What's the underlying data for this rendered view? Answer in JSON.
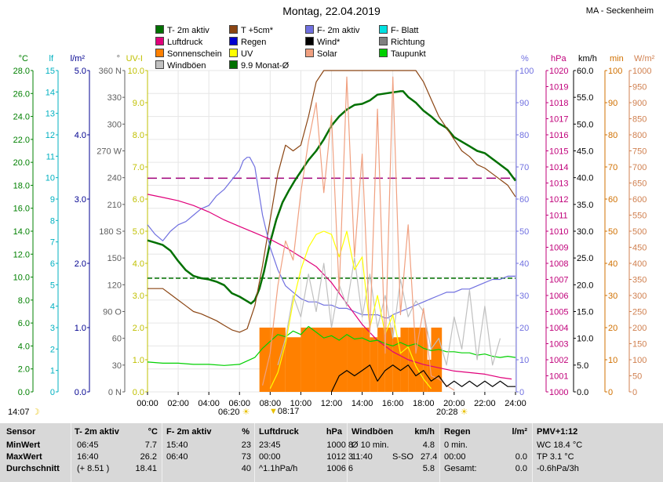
{
  "header": {
    "title": "Montag, 22.04.2019",
    "station": "MA - Seckenheim"
  },
  "legend": [
    {
      "label": "T- 2m aktiv",
      "color": "#007000"
    },
    {
      "label": "T +5cm*",
      "color": "#8b4513"
    },
    {
      "label": "F- 2m aktiv",
      "color": "#7070e0"
    },
    {
      "label": "F- Blatt",
      "color": "#00e0e0"
    },
    {
      "label": "Luftdruck",
      "color": "#e0007a"
    },
    {
      "label": "Regen",
      "color": "#0000d0"
    },
    {
      "label": "Wind*",
      "color": "#000000"
    },
    {
      "label": "Richtung",
      "color": "#808080"
    },
    {
      "label": "Sonnenschein",
      "color": "#ff8000"
    },
    {
      "label": "UV",
      "color": "#ffff00"
    },
    {
      "label": "Solar",
      "color": "#f0a080"
    },
    {
      "label": "Taupunkt",
      "color": "#00d000"
    },
    {
      "label": "Windböen",
      "color": "#c0c0c0"
    },
    {
      "label": "9.9 Monat-Ø",
      "color": "#007000"
    }
  ],
  "axis_units": {
    "temp": "°C",
    "lf": "lf",
    "rain": "l/m²",
    "dir": "°",
    "uv": "UV-I",
    "hum": "%",
    "press": "hPa",
    "wind": "km/h",
    "min": "min",
    "solar": "W/m²"
  },
  "chart_data": {
    "type": "line",
    "x_range": [
      0,
      24
    ],
    "x_ticks": [
      "00:00",
      "02:00",
      "04:00",
      "06:00",
      "08:00",
      "10:00",
      "12:00",
      "14:00",
      "16:00",
      "18:00",
      "20:00",
      "22:00",
      "24:00"
    ],
    "axes": {
      "temp": {
        "ticks": [
          "28.0",
          "26.0",
          "24.0",
          "22.0",
          "20.0",
          "18.0",
          "16.0",
          "14.0",
          "12.0",
          "10.0",
          "8.0",
          "6.0",
          "4.0",
          "2.0",
          "0.0"
        ],
        "range": [
          0,
          28
        ]
      },
      "lf": {
        "ticks": [
          "15",
          "14",
          "13",
          "12",
          "11",
          "10",
          "9",
          "8",
          "7",
          "6",
          "5",
          "4",
          "3",
          "2",
          "1",
          "0"
        ],
        "range": [
          0,
          15
        ]
      },
      "rain": {
        "ticks": [
          "5.0",
          "4.0",
          "3.0",
          "2.0",
          "1.0",
          "0.0"
        ],
        "range": [
          0,
          5
        ]
      },
      "dir": {
        "ticks": [
          "360 N",
          "330",
          "300",
          "270 W",
          "240",
          "210",
          "180 S",
          "150",
          "120",
          "90 O",
          "60",
          "30",
          "0 N"
        ],
        "range": [
          0,
          360
        ]
      },
      "uv": {
        "ticks": [
          "10.0",
          "9.0",
          "8.0",
          "7.0",
          "6.0",
          "5.0",
          "4.0",
          "3.0",
          "2.0",
          "1.0",
          "0.0"
        ],
        "range": [
          0,
          10
        ]
      },
      "hum": {
        "ticks": [
          "100",
          "90",
          "80",
          "70",
          "60",
          "50",
          "40",
          "30",
          "20",
          "10",
          "0"
        ],
        "range": [
          0,
          100
        ]
      },
      "press": {
        "ticks": [
          "1020",
          "1019",
          "1018",
          "1017",
          "1016",
          "1015",
          "1014",
          "1013",
          "1012",
          "1011",
          "1010",
          "1009",
          "1008",
          "1007",
          "1006",
          "1005",
          "1004",
          "1003",
          "1002",
          "1001",
          "1000"
        ],
        "range": [
          1000,
          1020
        ]
      },
      "wind": {
        "ticks": [
          "60.0",
          "55.0",
          "50.0",
          "45.0",
          "40.0",
          "35.0",
          "30.0",
          "25.0",
          "20.0",
          "15.0",
          "10.0",
          "5.0",
          "0.0"
        ],
        "range": [
          0,
          60
        ]
      },
      "min": {
        "ticks": [
          "100",
          "90",
          "80",
          "70",
          "60",
          "50",
          "40",
          "30",
          "20",
          "10",
          "0"
        ],
        "range": [
          0,
          100
        ]
      },
      "solar": {
        "ticks": [
          "1000",
          "950",
          "900",
          "850",
          "800",
          "750",
          "700",
          "650",
          "600",
          "550",
          "500",
          "450",
          "400",
          "350",
          "300",
          "250",
          "200",
          "150",
          "100",
          "50",
          "0"
        ],
        "range": [
          0,
          1000
        ]
      }
    },
    "series": [
      {
        "name": "T- 2m aktiv",
        "axis": "temp",
        "color": "#007000",
        "x": [
          0,
          0.5,
          1,
          1.5,
          2,
          2.5,
          3,
          3.5,
          4,
          4.5,
          5,
          5.5,
          6,
          6.5,
          6.75,
          7,
          7.3,
          7.6,
          8,
          8.4,
          8.8,
          9.2,
          9.6,
          10,
          10.5,
          11,
          11.5,
          12,
          12.5,
          13,
          13.5,
          14,
          14.5,
          15,
          15.5,
          16,
          16.5,
          16.67,
          17,
          17.5,
          18,
          18.5,
          19,
          19.5,
          20,
          20.5,
          21,
          21.5,
          22,
          22.5,
          23,
          23.5,
          24
        ],
        "y": [
          13.2,
          13.0,
          12.8,
          12.3,
          11.4,
          10.6,
          10.1,
          9.9,
          9.8,
          9.6,
          9.3,
          8.6,
          8.3,
          7.9,
          7.7,
          8.0,
          9.0,
          10.5,
          13.0,
          15.0,
          16.5,
          17.5,
          18.4,
          19.2,
          20.2,
          21.0,
          22.0,
          23.2,
          24.0,
          24.6,
          25.0,
          25.1,
          25.4,
          25.9,
          26.0,
          26.1,
          26.2,
          26.2,
          25.7,
          25.2,
          24.5,
          24.0,
          23.4,
          23.0,
          22.2,
          21.8,
          21.4,
          21.0,
          20.8,
          20.3,
          19.8,
          19.3,
          18.4
        ]
      },
      {
        "name": "T +5cm*",
        "axis": "temp",
        "color": "#8b4513",
        "x": [
          0,
          0.5,
          1,
          1.5,
          2,
          2.5,
          3,
          3.5,
          4,
          4.5,
          5,
          5.5,
          6,
          6.5,
          7,
          7.5,
          8,
          8.5,
          9,
          9.5,
          10,
          10.5,
          11,
          11.5,
          12,
          12.5,
          13,
          13.5,
          14,
          14.5,
          15,
          15.5,
          16,
          16.5,
          17,
          17.5,
          18,
          18.5,
          19,
          19.5,
          20,
          20.5,
          21,
          21.5,
          22,
          22.5,
          23,
          23.5,
          24
        ],
        "y": [
          9.0,
          9.0,
          9.0,
          8.5,
          8.0,
          7.5,
          7.0,
          6.8,
          6.5,
          6.2,
          5.8,
          5.4,
          5.2,
          5.5,
          7.5,
          11.0,
          15.0,
          19.0,
          21.5,
          21.0,
          21.5,
          24.0,
          27.0,
          28.5,
          28.0,
          29.0,
          30.0,
          31.0,
          31.5,
          32.0,
          31.5,
          31.0,
          30.5,
          30.0,
          29.0,
          28.0,
          27.0,
          25.5,
          24.0,
          23.0,
          22.0,
          21.0,
          20.5,
          19.8,
          19.5,
          19.0,
          18.5,
          18.0,
          17.0
        ]
      },
      {
        "name": "F- 2m aktiv",
        "axis": "hum",
        "color": "#7070e0",
        "x": [
          0,
          0.5,
          1,
          1.5,
          2,
          2.5,
          3,
          3.5,
          4,
          4.5,
          5,
          5.5,
          6,
          6.25,
          6.5,
          6.67,
          7,
          7.5,
          8,
          8.5,
          9,
          9.5,
          10,
          10.5,
          11,
          11.5,
          12,
          12.5,
          13,
          13.5,
          14,
          14.5,
          15,
          15.5,
          15.67,
          16,
          16.5,
          17,
          17.5,
          18,
          18.5,
          19,
          19.5,
          20,
          20.5,
          21,
          21.5,
          22,
          22.5,
          23,
          23.5,
          24
        ],
        "y": [
          52,
          49,
          47,
          50,
          52,
          53,
          55,
          57,
          58,
          61,
          63,
          66,
          69,
          72,
          73,
          73,
          70,
          55,
          45,
          38,
          33,
          31,
          29,
          28,
          28,
          27,
          27,
          26,
          26,
          25,
          24,
          24,
          24,
          23,
          23,
          24,
          25,
          26,
          27,
          28,
          29,
          30,
          31,
          31,
          32,
          32,
          33,
          34,
          35,
          35,
          36,
          36
        ]
      },
      {
        "name": "Luftdruck",
        "axis": "press",
        "color": "#e0007a",
        "x": [
          0,
          1,
          2,
          3,
          4,
          5,
          6,
          7,
          8,
          9,
          10,
          11,
          12,
          13,
          14,
          15,
          16,
          17,
          18,
          19,
          20,
          21,
          22,
          23,
          23.75
        ],
        "y": [
          1012.3,
          1012.1,
          1011.9,
          1011.6,
          1011.2,
          1010.7,
          1010.3,
          1009.9,
          1009.5,
          1009.0,
          1008.4,
          1007.8,
          1006.8,
          1005.5,
          1004.2,
          1003.2,
          1002.5,
          1002.0,
          1001.7,
          1001.5,
          1001.3,
          1001.2,
          1001.1,
          1000.9,
          1000.8
        ]
      },
      {
        "name": "Taupunkt",
        "axis": "temp",
        "color": "#00d000",
        "x": [
          0,
          1,
          2,
          3,
          4,
          5,
          6,
          7,
          7.5,
          8,
          8.5,
          9,
          9.5,
          10,
          10.5,
          11,
          11.5,
          12,
          12.5,
          13,
          13.5,
          14,
          14.5,
          15,
          15.5,
          16,
          16.5,
          17,
          17.5,
          18,
          18.5,
          19,
          19.5,
          20,
          20.5,
          21,
          21.5,
          22,
          22.5,
          23,
          23.5,
          24
        ],
        "y": [
          2.6,
          2.5,
          2.5,
          2.4,
          2.4,
          2.3,
          2.4,
          3.0,
          3.8,
          4.4,
          5.0,
          4.8,
          5.3,
          5.0,
          5.7,
          5.2,
          4.7,
          4.9,
          4.5,
          5.0,
          4.6,
          4.7,
          4.4,
          4.5,
          4.2,
          4.0,
          4.3,
          4.0,
          4.2,
          3.8,
          3.6,
          3.7,
          3.5,
          3.5,
          3.4,
          3.4,
          3.2,
          3.3,
          3.1,
          3.0,
          3.1,
          3.0
        ]
      },
      {
        "name": "Windböen",
        "axis": "wind",
        "color": "#c0c0c0",
        "x": [
          8.5,
          9,
          9.5,
          10,
          10.5,
          11,
          11.5,
          12,
          12.5,
          13,
          13.5,
          14,
          14.5,
          15,
          15.5,
          16,
          16.5,
          17,
          17.5,
          18,
          18.5,
          19,
          19.5,
          20,
          20.5,
          21,
          21.5,
          22,
          22.5,
          23
        ],
        "y": [
          5,
          10,
          18,
          14,
          22,
          15,
          24,
          12,
          20,
          16,
          25,
          14,
          22,
          12,
          18,
          10,
          21,
          14,
          17,
          15,
          8,
          10,
          5,
          14,
          8,
          19,
          6,
          16,
          5,
          10
        ]
      },
      {
        "name": "UV",
        "axis": "uv",
        "color": "#ffff00",
        "x": [
          8,
          8.5,
          9,
          9.5,
          10,
          10.5,
          11,
          11.5,
          12,
          12.5,
          13,
          13.5,
          14,
          14.5,
          15,
          15.5,
          16,
          16.5,
          17,
          17.5,
          18,
          18.5
        ],
        "y": [
          0.1,
          0.6,
          1.5,
          2.8,
          3.8,
          4.5,
          4.9,
          5.0,
          4.9,
          4.2,
          5.0,
          3.8,
          4.2,
          2.0,
          3.0,
          1.8,
          2.4,
          1.2,
          1.4,
          0.8,
          0.4,
          0.1
        ]
      },
      {
        "name": "Solar",
        "axis": "solar",
        "color": "#f0a080",
        "x": [
          7.5,
          8,
          8.5,
          9,
          9.5,
          10,
          10.5,
          11,
          11.5,
          12,
          12.5,
          13,
          13.5,
          14,
          14.5,
          15,
          15.5,
          16,
          16.5,
          17,
          17.5,
          18,
          18.5,
          19,
          19.5,
          20
        ],
        "y": [
          20,
          120,
          330,
          470,
          410,
          620,
          780,
          900,
          620,
          860,
          310,
          980,
          420,
          740,
          180,
          880,
          120,
          980,
          240,
          520,
          120,
          260,
          50,
          40,
          20,
          5
        ]
      },
      {
        "name": "Wind*",
        "axis": "wind",
        "color": "#000000",
        "x": [
          12,
          12.5,
          13,
          13.5,
          14,
          14.5,
          15,
          15.5,
          16,
          16.5,
          17,
          17.5,
          18,
          18.5,
          19,
          19.5,
          20,
          20.5,
          21,
          21.5,
          22,
          22.5,
          23,
          23.5,
          24
        ],
        "y": [
          0,
          3,
          4,
          3,
          4,
          5,
          2,
          4,
          5,
          4,
          5,
          3,
          4,
          2,
          3,
          1,
          2,
          1,
          2,
          1,
          2,
          1,
          2,
          1,
          1
        ]
      }
    ],
    "sunshine_min": {
      "axis": "min",
      "x": [
        7.3,
        8,
        9,
        10,
        11,
        12,
        13,
        14,
        14.5,
        15,
        15.5,
        16,
        16.5,
        17,
        17.5,
        18,
        18.25,
        18.5,
        19.2
      ],
      "y": [
        20,
        20,
        17,
        20,
        20,
        20,
        20,
        20,
        17,
        20,
        20,
        17,
        20,
        20,
        20,
        20,
        10,
        20,
        10
      ]
    },
    "ref_lines": [
      {
        "label": "monthly-avg",
        "axis": "temp",
        "value": 9.9,
        "color": "#007000",
        "dash": "6,3"
      },
      {
        "label": "press-ref",
        "axis": "press",
        "value": 1013.3,
        "color": "#a0007a",
        "dash": "12,6"
      }
    ],
    "markers": {
      "sunrise": "06:20",
      "sunset": "20:28",
      "moonset": "14:07",
      "min_time": "08:17"
    }
  },
  "table": {
    "headers": [
      {
        "title": "Sensor",
        "unit": ""
      },
      {
        "title": "T- 2m aktiv",
        "unit": "°C"
      },
      {
        "title": "F- 2m aktiv",
        "unit": "%"
      },
      {
        "title": "Luftdruck",
        "unit": "hPa"
      },
      {
        "title": "Windböen",
        "unit": "km/h"
      },
      {
        "title": "Regen",
        "unit": "l/m²"
      },
      {
        "title": "PMV+1:12",
        "unit": ""
      }
    ],
    "rows": [
      [
        "MinWert",
        "06:45",
        "7.7",
        "15:40",
        "23",
        "23:45",
        "1000.8",
        "Ø 10 min.",
        "",
        "4.8",
        "0 min.",
        "",
        "WC 18.4 °C"
      ],
      [
        "MaxWert",
        "16:40",
        "26.2",
        "06:40",
        "73",
        "00:00",
        "1012.3",
        "11:40",
        "S-SO",
        "27.4",
        "00:00",
        "0.0",
        "TP 3.1 °C"
      ],
      [
        "Durchschnitt",
        "(+ 8.51 )",
        "18.41",
        "",
        "40",
        "^1.1hPa/h",
        "1006.6",
        "",
        "",
        "5.8",
        "Gesamt:",
        "0.0",
        "-0.6hPa/3h"
      ]
    ]
  }
}
